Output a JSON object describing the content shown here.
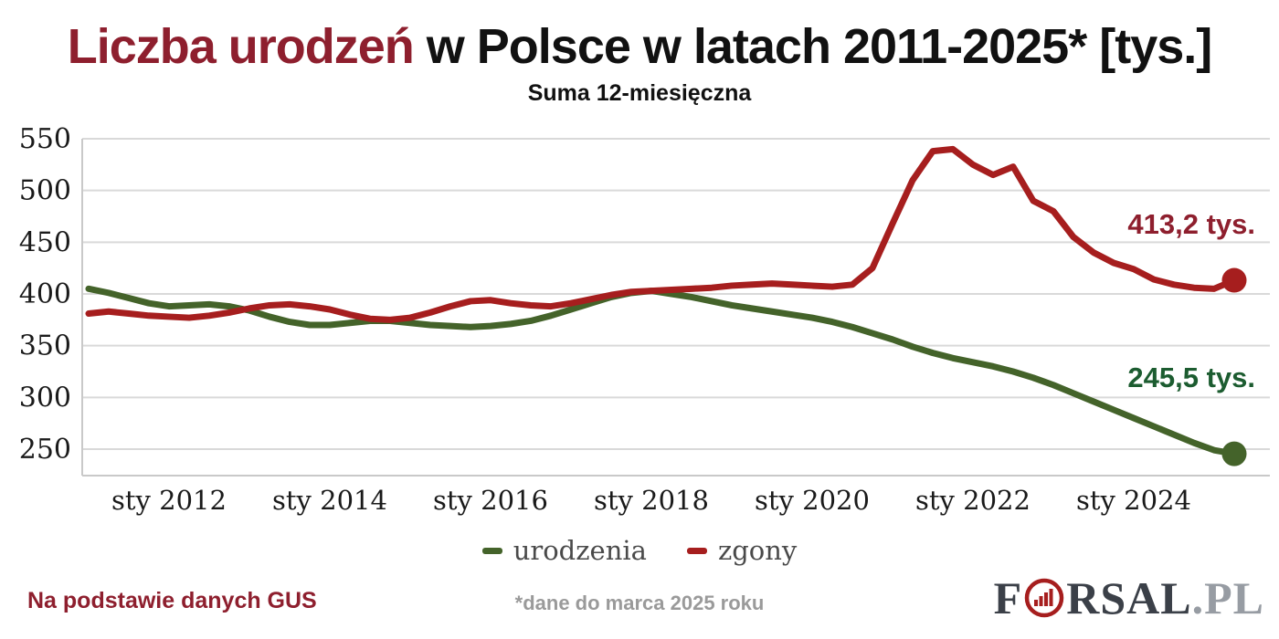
{
  "title": {
    "highlight": "Liczba urodzeń",
    "rest": " w Polsce w latach 2011-2025* [tys.]"
  },
  "subtitle": "Suma 12-miesięczna",
  "colors": {
    "births_line": "#44632a",
    "deaths_line": "#a61e1e",
    "title_red": "#8e1f2e",
    "annotation_green": "#1c5c30",
    "annotation_red": "#8e1f2e",
    "grid": "#d9d9d9",
    "axis_text": "#1a1a1a",
    "legend_text": "#4a4a4a",
    "footer_gray": "#9a9a9a",
    "logo_dark": "#3b4048",
    "logo_gray": "#979ca3"
  },
  "annotations": {
    "deaths_value": "413,2 tys.",
    "births_value": "245,5 tys."
  },
  "legend": [
    {
      "label": "urodzenia",
      "color": "#44632a"
    },
    {
      "label": "zgony",
      "color": "#a61e1e"
    }
  ],
  "footer": {
    "source": "Na podstawie danych GUS",
    "note": "*dane do marca 2025 roku",
    "logo_pre": "F",
    "logo_mid": "RSAL",
    "logo_suffix": ".PL",
    "logo_icon": "bar-chart-in-circle-icon"
  },
  "chart_data": {
    "type": "line",
    "title": "Liczba urodzeń w Polsce w latach 2011-2025* [tys.]",
    "subtitle": "Suma 12-miesięczna",
    "x_unit": "year (fractional, quarterly samples, 12-month rolling sum in thousands)",
    "x": [
      2011,
      2011.25,
      2011.5,
      2011.75,
      2012,
      2012.25,
      2012.5,
      2012.75,
      2013,
      2013.25,
      2013.5,
      2013.75,
      2014,
      2014.25,
      2014.5,
      2014.75,
      2015,
      2015.25,
      2015.5,
      2015.75,
      2016,
      2016.25,
      2016.5,
      2016.75,
      2017,
      2017.25,
      2017.5,
      2017.75,
      2018,
      2018.25,
      2018.5,
      2018.75,
      2019,
      2019.25,
      2019.5,
      2019.75,
      2020,
      2020.25,
      2020.5,
      2020.75,
      2021,
      2021.25,
      2021.5,
      2021.75,
      2022,
      2022.25,
      2022.5,
      2022.75,
      2023,
      2023.25,
      2023.5,
      2023.75,
      2024,
      2024.25,
      2024.5,
      2024.75,
      2025,
      2025.25
    ],
    "series": [
      {
        "name": "urodzenia",
        "color": "#44632a",
        "values": [
          405,
          401,
          396,
          391,
          388,
          389,
          390,
          388,
          384,
          378,
          373,
          370,
          370,
          372,
          374,
          374,
          372,
          370,
          369,
          368,
          369,
          371,
          374,
          379,
          385,
          391,
          397,
          401,
          403,
          400,
          397,
          393,
          389,
          386,
          383,
          380,
          377,
          373,
          368,
          362,
          356,
          349,
          343,
          338,
          334,
          330,
          325,
          319,
          312,
          304,
          296,
          288,
          280,
          272,
          264,
          256,
          249,
          245.5
        ]
      },
      {
        "name": "zgony",
        "color": "#a61e1e",
        "values": [
          381,
          383,
          381,
          379,
          378,
          377,
          379,
          382,
          386,
          389,
          390,
          388,
          385,
          380,
          376,
          375,
          377,
          382,
          388,
          393,
          394,
          391,
          389,
          388,
          391,
          395,
          399,
          402,
          403,
          404,
          405,
          406,
          408,
          409,
          410,
          409,
          408,
          407,
          409,
          425,
          468,
          510,
          538,
          540,
          525,
          515,
          523,
          490,
          480,
          455,
          440,
          430,
          424,
          414,
          409,
          406,
          405,
          413.2
        ]
      }
    ],
    "ylim": [
      250,
      550
    ],
    "yticks": [
      550,
      500,
      450,
      400,
      350,
      300,
      250
    ],
    "xticks": [
      {
        "label": "sty 2012",
        "x": 2012
      },
      {
        "label": "sty 2014",
        "x": 2014
      },
      {
        "label": "sty 2016",
        "x": 2016
      },
      {
        "label": "sty 2018",
        "x": 2018
      },
      {
        "label": "sty 2020",
        "x": 2020
      },
      {
        "label": "sty 2022",
        "x": 2022
      },
      {
        "label": "sty 2024",
        "x": 2024
      }
    ],
    "grid": "horizontal",
    "legend_position": "bottom",
    "last_values": {
      "urodzenia": 245.5,
      "zgony": 413.2
    },
    "end_markers": true
  }
}
